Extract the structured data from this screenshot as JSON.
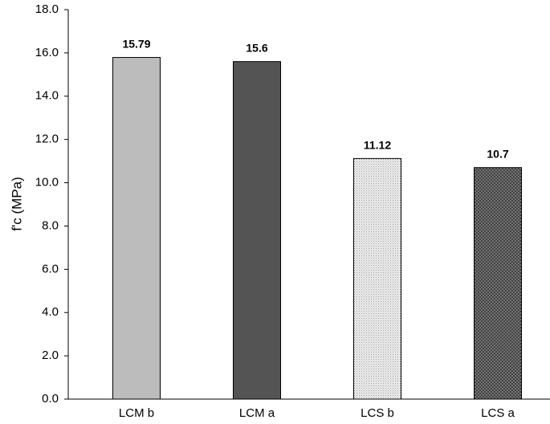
{
  "chart_data": {
    "type": "bar",
    "categories": [
      "LCM b",
      "LCM a",
      "LCS b",
      "LCS a"
    ],
    "values": [
      15.79,
      15.6,
      11.12,
      10.7
    ],
    "data_labels": [
      "15.79",
      "15.6",
      "11.12",
      "10.7"
    ],
    "title": "",
    "xlabel": "",
    "ylabel": "f'c (MPa)",
    "ylim": [
      0,
      18
    ],
    "yticks": [
      "0.0",
      "2.0",
      "4.0",
      "6.0",
      "8.0",
      "10.0",
      "12.0",
      "14.0",
      "16.0",
      "18.0"
    ],
    "ytick_values": [
      0,
      2,
      4,
      6,
      8,
      10,
      12,
      14,
      16,
      18
    ],
    "grid": false,
    "legend": "none",
    "bar_fills": [
      {
        "color": "#bcbcbc",
        "pattern": "solid"
      },
      {
        "color": "#545454",
        "pattern": "solid"
      },
      {
        "color": "#e6e6e6",
        "pattern": "fine-dots"
      },
      {
        "color": "#6a6a6a",
        "pattern": "crosshatch"
      }
    ]
  }
}
